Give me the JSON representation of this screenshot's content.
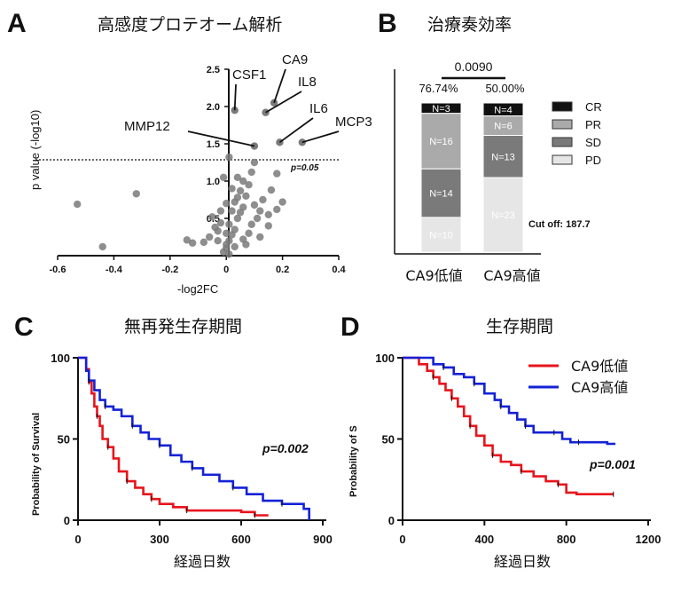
{
  "panels": {
    "A": {
      "letter": "A",
      "title": "高感度プロテオーム解析",
      "xlabel": "-log2FC",
      "ylabel": "p value (-log10)",
      "threshold_label": "p=0.05"
    },
    "B": {
      "letter": "B",
      "title": "治療奏効率",
      "pvalue": "0.0090",
      "cutoff": "Cut off: 187.7"
    },
    "C": {
      "letter": "C",
      "title": "無再発生存期間",
      "xlabel": "経過日数",
      "ylabel": "Probability of Survival",
      "pvalue": "p=0.002"
    },
    "D": {
      "letter": "D",
      "title": "生存期間",
      "xlabel": "経過日数",
      "ylabel": "Probability of S",
      "pvalue": "p=0.001"
    }
  },
  "chart_data": [
    {
      "type": "scatter",
      "title": "高感度プロテオーム解析",
      "xlabel": "-log2FC",
      "ylabel": "p value (-log10)",
      "xlim": [
        -0.6,
        0.4
      ],
      "ylim": [
        0,
        2.5
      ],
      "xticks": [
        "-0.6",
        "-0.4",
        "-0.2",
        "0",
        "0.2",
        "0.4"
      ],
      "yticks": [
        "0.5",
        "1.0",
        "1.5",
        "2.0",
        "2.5"
      ],
      "threshold": 1.3,
      "threshold_label": "p=0.05",
      "labeled_points": [
        {
          "name": "CSF1",
          "x": 0.03,
          "y": 1.95
        },
        {
          "name": "CA9",
          "x": 0.17,
          "y": 2.05
        },
        {
          "name": "IL8",
          "x": 0.14,
          "y": 1.92
        },
        {
          "name": "IL6",
          "x": 0.19,
          "y": 1.52
        },
        {
          "name": "MCP3",
          "x": 0.27,
          "y": 1.52
        },
        {
          "name": "MMP12",
          "x": 0.1,
          "y": 1.47
        }
      ],
      "points": [
        [
          -0.53,
          0.69
        ],
        [
          -0.32,
          0.83
        ],
        [
          -0.44,
          0.12
        ],
        [
          -0.12,
          0.17
        ],
        [
          -0.14,
          0.21
        ],
        [
          -0.05,
          0.52
        ],
        [
          -0.03,
          0.33
        ],
        [
          -0.06,
          0.25
        ],
        [
          -0.02,
          0.44
        ],
        [
          -0.04,
          0.38
        ],
        [
          -0.01,
          0.05
        ],
        [
          0.0,
          0.1
        ],
        [
          0.01,
          0.02
        ],
        [
          0.0,
          0.15
        ],
        [
          0.01,
          0.2
        ],
        [
          0.02,
          0.28
        ],
        [
          0.03,
          0.35
        ],
        [
          0.01,
          0.42
        ],
        [
          0.04,
          0.5
        ],
        [
          0.05,
          0.58
        ],
        [
          0.06,
          0.65
        ],
        [
          0.03,
          0.72
        ],
        [
          0.07,
          0.8
        ],
        [
          0.05,
          0.87
        ],
        [
          0.08,
          0.95
        ],
        [
          0.04,
          1.05
        ],
        [
          0.02,
          0.9
        ],
        [
          0.09,
          0.42
        ],
        [
          0.11,
          0.5
        ],
        [
          0.12,
          0.6
        ],
        [
          0.1,
          0.68
        ],
        [
          0.13,
          0.75
        ],
        [
          0.15,
          0.55
        ],
        [
          0.18,
          0.62
        ],
        [
          0.2,
          0.72
        ],
        [
          0.15,
          0.4
        ],
        [
          0.08,
          0.3
        ],
        [
          0.06,
          0.22
        ],
        [
          0.02,
          0.6
        ],
        [
          0.04,
          0.78
        ],
        [
          -0.02,
          0.6
        ],
        [
          0.0,
          0.7
        ],
        [
          -0.03,
          0.2
        ],
        [
          0.09,
          1.12
        ],
        [
          0.1,
          1.25
        ],
        [
          -0.01,
          1.05
        ],
        [
          0.06,
          1.0
        ],
        [
          0.01,
          1.32
        ],
        [
          0.18,
          1.1
        ],
        [
          0.16,
          0.88
        ],
        [
          0.0,
          0.3
        ],
        [
          0.03,
          0.12
        ],
        [
          -0.08,
          0.18
        ],
        [
          0.07,
          0.15
        ],
        [
          0.12,
          0.25
        ]
      ]
    },
    {
      "type": "bar",
      "title": "治療奏効率",
      "categories": [
        "CA9低値",
        "CA9高値"
      ],
      "response_rates": [
        "76.74%",
        "50.00%"
      ],
      "pvalue": "0.0090",
      "series": [
        {
          "name": "CR",
          "values": [
            3,
            4
          ],
          "color": "#111111"
        },
        {
          "name": "PR",
          "values": [
            16,
            6
          ],
          "color": "#aaaaaa"
        },
        {
          "name": "SD",
          "values": [
            14,
            13
          ],
          "color": "#7a7a7a"
        },
        {
          "name": "PD",
          "values": [
            10,
            23
          ],
          "color": "#e6e6e6"
        }
      ],
      "segment_labels": [
        [
          "N=3",
          "N=16",
          "N=14",
          "N=10"
        ],
        [
          "N=4",
          "N=6",
          "N=13",
          "N=23"
        ]
      ],
      "cutoff": "Cut off: 187.7",
      "legend": "right"
    },
    {
      "type": "line",
      "title": "無再発生存期間",
      "xlabel": "経過日数",
      "ylabel": "Probability of Survival",
      "xlim": [
        0,
        900
      ],
      "ylim": [
        0,
        100
      ],
      "xticks": [
        "0",
        "300",
        "600",
        "900"
      ],
      "yticks": [
        "0",
        "50",
        "100"
      ],
      "pvalue": "p=0.002",
      "series": [
        {
          "name": "CA9低値",
          "color": "#e8141c",
          "points": [
            [
              0,
              100
            ],
            [
              20,
              100
            ],
            [
              30,
              93
            ],
            [
              40,
              85
            ],
            [
              50,
              78
            ],
            [
              60,
              70
            ],
            [
              70,
              64
            ],
            [
              80,
              58
            ],
            [
              90,
              50
            ],
            [
              110,
              45
            ],
            [
              130,
              38
            ],
            [
              150,
              30
            ],
            [
              180,
              24
            ],
            [
              210,
              20
            ],
            [
              240,
              16
            ],
            [
              270,
              13
            ],
            [
              300,
              10
            ],
            [
              350,
              8
            ],
            [
              400,
              6
            ],
            [
              500,
              6
            ],
            [
              600,
              5
            ],
            [
              650,
              3
            ],
            [
              700,
              3
            ]
          ]
        },
        {
          "name": "CA9高値",
          "color": "#1422d6",
          "points": [
            [
              0,
              100
            ],
            [
              20,
              100
            ],
            [
              30,
              92
            ],
            [
              40,
              86
            ],
            [
              60,
              80
            ],
            [
              80,
              74
            ],
            [
              100,
              70
            ],
            [
              130,
              68
            ],
            [
              160,
              64
            ],
            [
              200,
              58
            ],
            [
              230,
              54
            ],
            [
              260,
              50
            ],
            [
              300,
              46
            ],
            [
              340,
              40
            ],
            [
              380,
              36
            ],
            [
              420,
              32
            ],
            [
              460,
              28
            ],
            [
              520,
              24
            ],
            [
              570,
              20
            ],
            [
              620,
              16
            ],
            [
              680,
              12
            ],
            [
              750,
              10
            ],
            [
              830,
              7
            ],
            [
              850,
              0
            ]
          ]
        }
      ]
    },
    {
      "type": "line",
      "title": "生存期間",
      "xlabel": "経過日数",
      "ylabel": "Probability of S",
      "xlim": [
        0,
        1200
      ],
      "ylim": [
        0,
        100
      ],
      "xticks": [
        "0",
        "400",
        "800",
        "1200"
      ],
      "yticks": [
        "0",
        "50",
        "100"
      ],
      "pvalue": "p=0.001",
      "legend": "top-right",
      "series": [
        {
          "name": "CA9低値",
          "color": "#e8141c",
          "points": [
            [
              0,
              100
            ],
            [
              80,
              96
            ],
            [
              120,
              92
            ],
            [
              150,
              88
            ],
            [
              180,
              84
            ],
            [
              210,
              80
            ],
            [
              240,
              75
            ],
            [
              270,
              70
            ],
            [
              300,
              64
            ],
            [
              330,
              58
            ],
            [
              360,
              52
            ],
            [
              400,
              46
            ],
            [
              440,
              40
            ],
            [
              480,
              36
            ],
            [
              530,
              34
            ],
            [
              580,
              30
            ],
            [
              640,
              27
            ],
            [
              700,
              24
            ],
            [
              760,
              22
            ],
            [
              800,
              17
            ],
            [
              850,
              16
            ],
            [
              1030,
              16
            ]
          ]
        },
        {
          "name": "CA9高値",
          "color": "#1422d6",
          "points": [
            [
              0,
              100
            ],
            [
              100,
              100
            ],
            [
              150,
              96
            ],
            [
              200,
              94
            ],
            [
              250,
              90
            ],
            [
              300,
              88
            ],
            [
              350,
              84
            ],
            [
              400,
              78
            ],
            [
              450,
              74
            ],
            [
              480,
              70
            ],
            [
              520,
              66
            ],
            [
              560,
              62
            ],
            [
              600,
              58
            ],
            [
              640,
              54
            ],
            [
              700,
              54
            ],
            [
              740,
              54
            ],
            [
              780,
              50
            ],
            [
              820,
              48
            ],
            [
              860,
              48
            ],
            [
              1000,
              47
            ],
            [
              1040,
              47
            ]
          ]
        }
      ]
    }
  ]
}
